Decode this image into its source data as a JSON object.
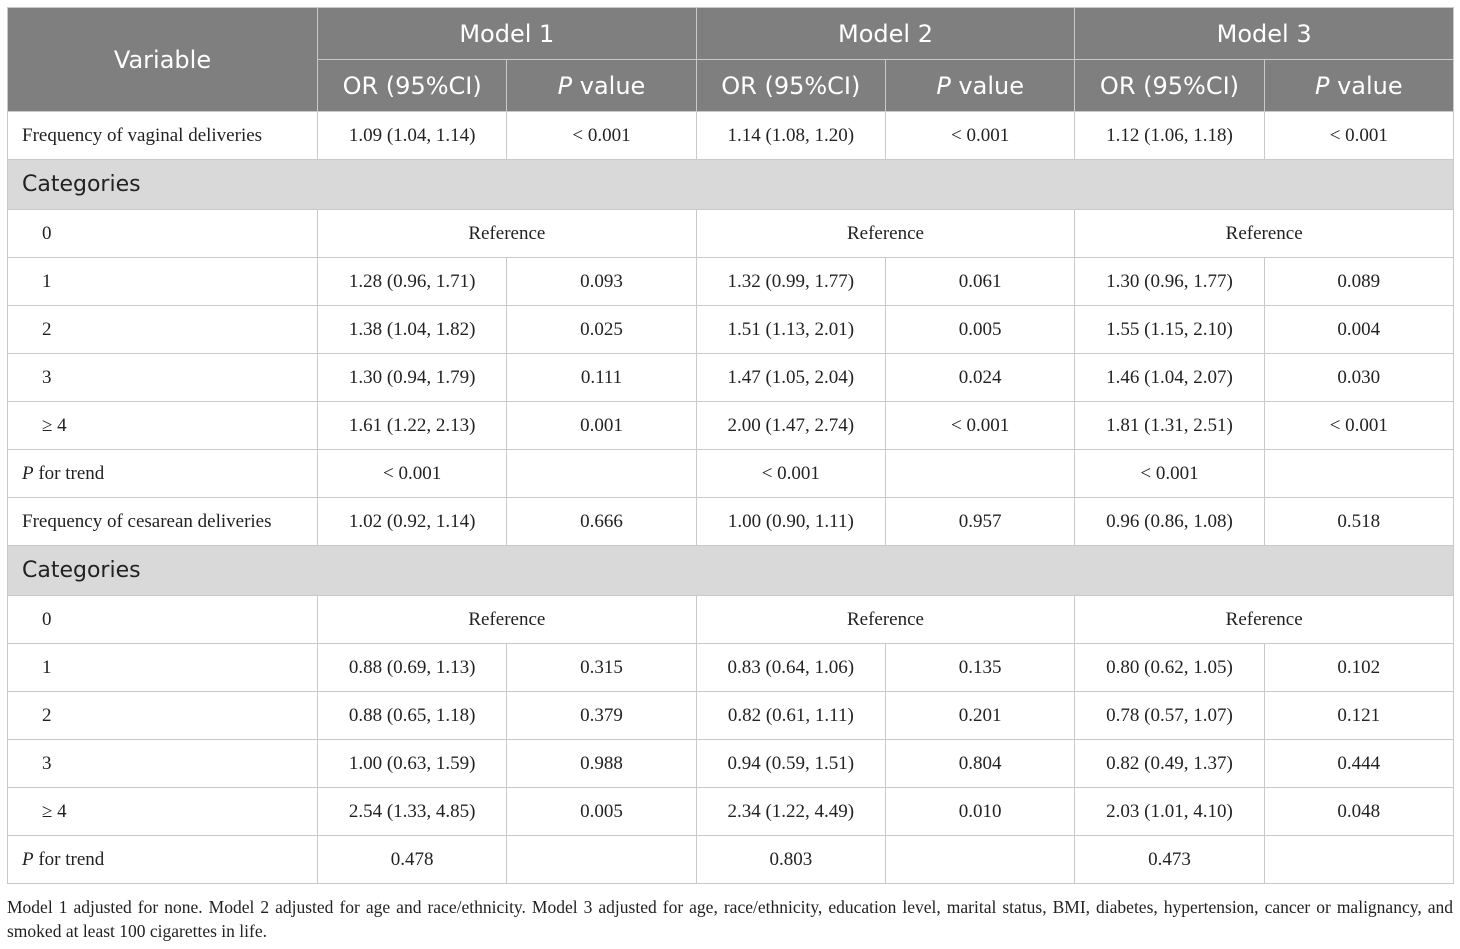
{
  "header": {
    "variable": "Variable",
    "models": [
      "Model 1",
      "Model 2",
      "Model 3"
    ],
    "or_label": "OR (95%CI)",
    "p_label_italic": "P",
    "p_label_rest": " value"
  },
  "rows": [
    {
      "type": "data",
      "label": "Frequency of vaginal deliveries",
      "cells": [
        "1.09 (1.04, 1.14)",
        "< 0.001",
        "1.14 (1.08, 1.20)",
        "< 0.001",
        "1.12 (1.06, 1.18)",
        "< 0.001"
      ]
    },
    {
      "type": "category",
      "label": "Categories"
    },
    {
      "type": "ref",
      "label": "0",
      "ref": "Reference"
    },
    {
      "type": "sub",
      "label": "1",
      "cells": [
        "1.28 (0.96, 1.71)",
        "0.093",
        "1.32 (0.99, 1.77)",
        "0.061",
        "1.30 (0.96, 1.77)",
        "0.089"
      ]
    },
    {
      "type": "sub",
      "label": "2",
      "cells": [
        "1.38 (1.04, 1.82)",
        "0.025",
        "1.51 (1.13, 2.01)",
        "0.005",
        "1.55 (1.15, 2.10)",
        "0.004"
      ]
    },
    {
      "type": "sub",
      "label": "3",
      "cells": [
        "1.30 (0.94, 1.79)",
        "0.111",
        "1.47 (1.05, 2.04)",
        "0.024",
        "1.46 (1.04, 2.07)",
        "0.030"
      ]
    },
    {
      "type": "sub",
      "label": "≥ 4",
      "cells": [
        "1.61 (1.22, 2.13)",
        "0.001",
        "2.00 (1.47, 2.74)",
        "< 0.001",
        "1.81 (1.31, 2.51)",
        "< 0.001"
      ]
    },
    {
      "type": "trend",
      "label_italic": "P",
      "label_rest": " for trend",
      "cells": [
        "< 0.001",
        "",
        "< 0.001",
        "",
        "< 0.001",
        ""
      ]
    },
    {
      "type": "data",
      "label": "Frequency of cesarean deliveries",
      "cells": [
        "1.02 (0.92, 1.14)",
        "0.666",
        "1.00 (0.90, 1.11)",
        "0.957",
        "0.96 (0.86, 1.08)",
        "0.518"
      ]
    },
    {
      "type": "category",
      "label": "Categories"
    },
    {
      "type": "ref",
      "label": "0",
      "ref": "Reference"
    },
    {
      "type": "sub",
      "label": "1",
      "cells": [
        "0.88 (0.69, 1.13)",
        "0.315",
        "0.83 (0.64, 1.06)",
        "0.135",
        "0.80 (0.62, 1.05)",
        "0.102"
      ]
    },
    {
      "type": "sub",
      "label": "2",
      "cells": [
        "0.88 (0.65, 1.18)",
        "0.379",
        "0.82 (0.61, 1.11)",
        "0.201",
        "0.78 (0.57, 1.07)",
        "0.121"
      ]
    },
    {
      "type": "sub",
      "label": "3",
      "cells": [
        "1.00 (0.63, 1.59)",
        "0.988",
        "0.94 (0.59, 1.51)",
        "0.804",
        "0.82 (0.49, 1.37)",
        "0.444"
      ]
    },
    {
      "type": "sub",
      "label": "≥ 4",
      "cells": [
        "2.54 (1.33, 4.85)",
        "0.005",
        "2.34 (1.22, 4.49)",
        "0.010",
        "2.03 (1.01, 4.10)",
        "0.048"
      ]
    },
    {
      "type": "trend",
      "label_italic": "P",
      "label_rest": " for trend",
      "cells": [
        "0.478",
        "",
        "0.803",
        "",
        "0.473",
        ""
      ]
    }
  ],
  "footnote": "Model 1 adjusted for none. Model 2 adjusted for age and race/ethnicity. Model 3 adjusted for age, race/ethnicity, education level, marital status, BMI, diabetes, hypertension, cancer or malignancy, and smoked at least 100 cigarettes in life."
}
